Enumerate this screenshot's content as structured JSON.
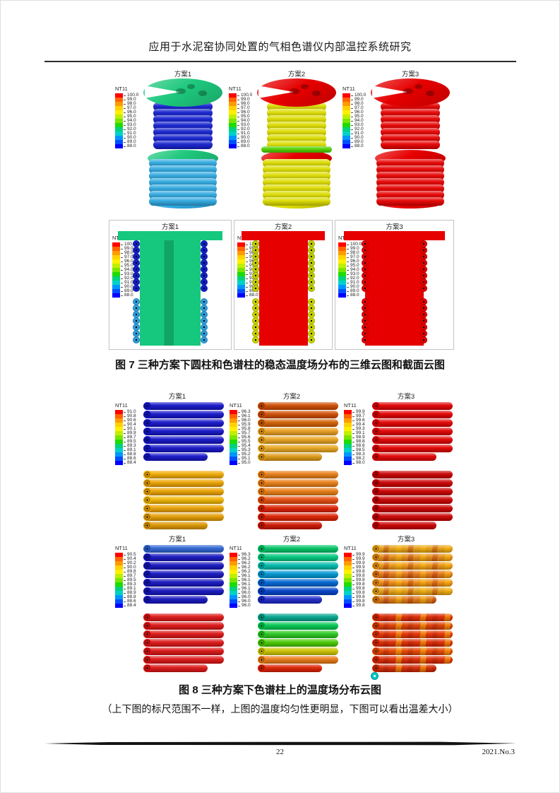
{
  "page": {
    "title": "应用于水泥窑协同处置的气相色谱仪内部温控系统研究",
    "footer_page": "22",
    "footer_issue": "2021.No.3"
  },
  "palette": {
    "rainbow13": [
      "#ff0000",
      "#ff6400",
      "#ff9b00",
      "#ffd200",
      "#fff000",
      "#bef000",
      "#78e600",
      "#1edc00",
      "#00d27d",
      "#00d2c8",
      "#0096ff",
      "#0050ff",
      "#0000ff"
    ]
  },
  "figure7": {
    "caption": "图 7 三种方案下圆柱和色谱柱的稳态温度场分布的三维云图和截面云图",
    "legend_title": "NT11",
    "legend_values": [
      "100.0",
      "99.0",
      "98.0",
      "97.0",
      "96.0",
      "95.0",
      "94.0",
      "93.0",
      "92.0",
      "91.0",
      "90.0",
      "89.0",
      "88.0"
    ],
    "panels_3d": [
      {
        "label": "方案1",
        "disc_top": "#1ec87d",
        "coil_upper": "#1420cd",
        "disc_mid": "#1ec87d",
        "band": null,
        "coil_lower": "#2fa8e0"
      },
      {
        "label": "方案2",
        "disc_top": "#e60000",
        "coil_upper": "#dcdc00",
        "disc_mid": "#e60000",
        "band": "#50d200",
        "coil_lower": "#dcdc00"
      },
      {
        "label": "方案3",
        "disc_top": "#e60000",
        "coil_upper": "#e60000",
        "disc_mid": "#e60000",
        "band": null,
        "coil_lower": "#e60000"
      }
    ],
    "panels_section": [
      {
        "label": "方案1",
        "body": "#16c87d",
        "stripe": true,
        "bumps": false,
        "circles_upper": "#1420cd",
        "circles_lower": "#2fa0e0"
      },
      {
        "label": "方案2",
        "body": "#e60000",
        "stripe": false,
        "bumps": false,
        "circles_upper": "#c3d200",
        "circles_lower": "#cdd800"
      },
      {
        "label": "方案3",
        "body": "#e60000",
        "stripe": false,
        "bumps": true,
        "circles_upper": "#e60000",
        "circles_lower": "#e60000"
      }
    ]
  },
  "figure8": {
    "caption": "图 8 三种方案下色谱柱上的温度场分布云图",
    "note": "（上下图的标尺范围不一样，上图的温度均匀性更明显，下图可以看出温差大小）",
    "legend_title": "NT11",
    "top_row": [
      {
        "label": "方案1",
        "legend_values": [
          "91.0",
          "90.8",
          "90.6",
          "90.4",
          "90.1",
          "89.9",
          "89.7",
          "89.5",
          "89.3",
          "89.1",
          "88.8",
          "88.6",
          "88.4"
        ],
        "coils_upper": [
          "#1414c8",
          "#1414c8",
          "#1414c8",
          "#1414c8",
          "#1414c8",
          "#1414c8",
          "#1414c8"
        ],
        "coils_lower": [
          "#f0aa00",
          "#eba200",
          "#eba200",
          "#f0b400",
          "#eba200",
          "#e39c00",
          "#dc9600"
        ]
      },
      {
        "label": "方案2",
        "legend_values": [
          "96.3",
          "96.1",
          "96.0",
          "95.9",
          "95.8",
          "95.7",
          "95.6",
          "95.5",
          "95.4",
          "95.3",
          "95.2",
          "95.1",
          "95.0"
        ],
        "coils_upper": [
          "#cd4b00",
          "#cd4b00",
          "#d25f00",
          "#e89e1e",
          "#e8a21e",
          "#e8a61e",
          "#de9914"
        ],
        "coils_lower": [
          "#e87d14",
          "#e87d14",
          "#e87d14",
          "#e44a0a",
          "#dc1e00",
          "#dc1e00",
          "#cd1400"
        ]
      },
      {
        "label": "方案3",
        "legend_values": [
          "99.9",
          "99.7",
          "99.6",
          "99.4",
          "99.3",
          "99.1",
          "98.9",
          "98.8",
          "98.6",
          "98.5",
          "98.3",
          "98.2",
          "98.0"
        ],
        "coils_upper": [
          "#e10000",
          "#e10000",
          "#e10000",
          "#e10000",
          "#e10000",
          "#e10000",
          "#e10000"
        ],
        "coils_lower": [
          "#c90000",
          "#c90000",
          "#c90000",
          "#c90000",
          "#c90000",
          "#c90000",
          "#c90000"
        ]
      }
    ],
    "bottom_row": [
      {
        "label": "方案1",
        "legend_values": [
          "90.5",
          "90.4",
          "90.2",
          "90.0",
          "89.8",
          "89.7",
          "89.5",
          "89.3",
          "89.1",
          "88.9",
          "88.8",
          "88.6",
          "88.4"
        ],
        "coils_upper": [
          "#2d64d2",
          "#1414be",
          "#1414be",
          "#1414be",
          "#1414be",
          "#1414be",
          "#1414be"
        ],
        "coils_lower": [
          "#dc1414",
          "#dc1414",
          "#dc1414",
          "#dc1414",
          "#dc1414",
          "#dc1414",
          "#dc1414"
        ]
      },
      {
        "label": "方案2",
        "legend_values": [
          "96.3",
          "96.2",
          "96.2",
          "96.2",
          "96.2",
          "96.1",
          "96.1",
          "96.1",
          "96.1",
          "96.0",
          "96.0",
          "96.0",
          "96.0"
        ],
        "coils_upper": [
          "#00c364",
          "#00c87d",
          "#00b9aa",
          "#0096d2",
          "#0064d2",
          "#0041c8",
          "#1e28c8"
        ],
        "coils_lower": [
          "#00a58c",
          "#00c850",
          "#28c81e",
          "#46c800",
          "#cdc400",
          "#e87814",
          "#dc2000"
        ]
      },
      {
        "label": "方案3",
        "legend_values": [
          "99.9",
          "99.9",
          "99.9",
          "99.9",
          "99.8",
          "99.8",
          "99.8",
          "99.8",
          "99.8",
          "99.8",
          "99.8",
          "99.8",
          "99.8"
        ],
        "coils_upper": [
          "#e6a014",
          "#e68c14",
          "#ee9614",
          "#e67814",
          "#ee8c14",
          "#e6a014",
          "#dc7814"
        ],
        "coils_lower": [
          "#dc2800",
          "#dc3c00",
          "#e63200",
          "#dc2800",
          "#e64600",
          "#dc2800",
          "#d22800"
        ],
        "mottled_upper": true,
        "mottled_lower": true,
        "end_dot": "#00c8c8"
      }
    ]
  }
}
